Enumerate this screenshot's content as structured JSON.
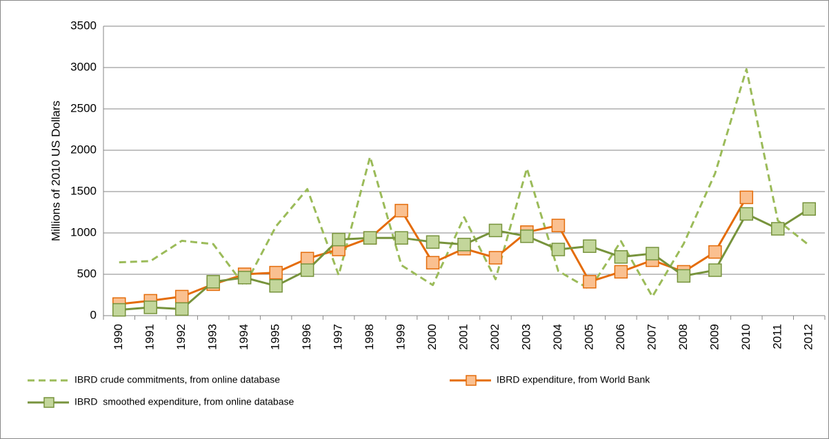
{
  "chart_data": {
    "type": "line",
    "y_label": "Millions of 2010 US Dollars",
    "categories": [
      "1990",
      "1991",
      "1992",
      "1993",
      "1994",
      "1995",
      "1996",
      "1997",
      "1998",
      "1999",
      "2000",
      "2001",
      "2002",
      "2003",
      "2004",
      "2005",
      "2006",
      "2007",
      "2008",
      "2009",
      "2010",
      "2011",
      "2012"
    ],
    "ylim": [
      0,
      3500
    ],
    "yticks": [
      0,
      500,
      1000,
      1500,
      2000,
      2500,
      3000,
      3500
    ],
    "grid": true,
    "legend": "bottom",
    "series": [
      {
        "name": "IBRD crude commitments, from online database",
        "color": "#9bbb59",
        "line_style": "dashed",
        "marker": "none",
        "values": [
          645,
          660,
          905,
          865,
          360,
          1080,
          1530,
          490,
          1920,
          610,
          370,
          1190,
          440,
          1780,
          540,
          320,
          900,
          230,
          870,
          1720,
          2980,
          1150,
          850
        ]
      },
      {
        "name": "IBRD expenditure, from World Bank",
        "color": "#e46c0a",
        "marker_fill": "#fac090",
        "line_style": "solid",
        "marker": "square",
        "values": [
          140,
          180,
          230,
          380,
          500,
          520,
          690,
          800,
          940,
          1270,
          640,
          810,
          700,
          1010,
          1090,
          410,
          530,
          670,
          530,
          770,
          1430,
          null,
          null
        ]
      },
      {
        "name": "IBRD  smoothed expenditure, from online database",
        "color": "#77933c",
        "marker_fill": "#c3d69b",
        "line_style": "solid",
        "marker": "square",
        "values": [
          70,
          100,
          80,
          410,
          460,
          360,
          550,
          920,
          940,
          940,
          890,
          860,
          1030,
          960,
          800,
          840,
          710,
          750,
          480,
          550,
          1230,
          1050,
          1290
        ]
      }
    ]
  }
}
